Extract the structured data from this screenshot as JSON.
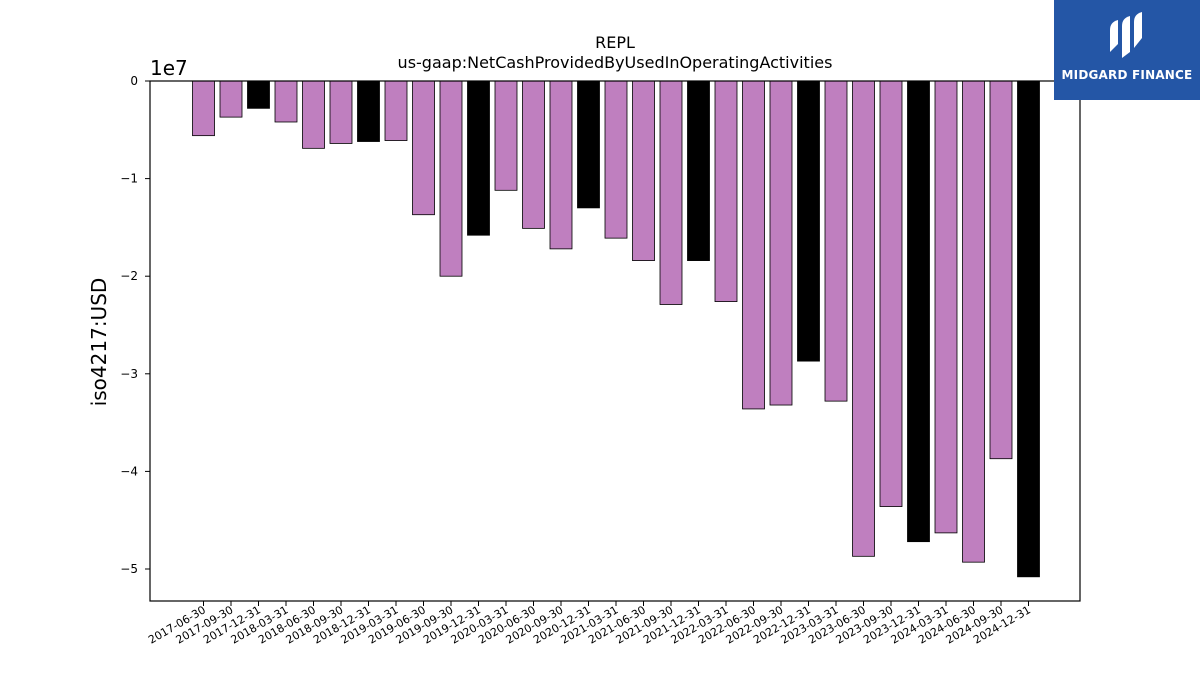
{
  "logo": {
    "text": "MIDGARD FINANCE"
  },
  "colors": {
    "quarterly": "#bf7fbf",
    "annual": "#000000",
    "logo_bg": "#2456a6"
  },
  "chart_data": {
    "type": "bar",
    "title": "REPL",
    "subtitle": "us-gaap:NetCashProvidedByUsedInOperatingActivities",
    "ylabel": "iso4217:USD",
    "xlabel": "",
    "scale_label": "1e7",
    "ylim": [
      -53000000,
      0
    ],
    "yticks": [
      0,
      -10000000,
      -20000000,
      -30000000,
      -40000000,
      -50000000
    ],
    "ytick_labels": [
      "0",
      "−1",
      "−2",
      "−3",
      "−4",
      "−5"
    ],
    "categories": [
      "2017-06-30",
      "2017-09-30",
      "2017-12-31",
      "2018-03-31",
      "2018-06-30",
      "2018-09-30",
      "2018-12-31",
      "2019-03-31",
      "2019-06-30",
      "2019-09-30",
      "2019-12-31",
      "2020-03-31",
      "2020-06-30",
      "2020-09-30",
      "2020-12-31",
      "2021-03-31",
      "2021-06-30",
      "2021-09-30",
      "2021-12-31",
      "2022-03-31",
      "2022-06-30",
      "2022-09-30",
      "2022-12-31",
      "2023-03-31",
      "2023-06-30",
      "2023-09-30",
      "2023-12-31",
      "2024-03-31",
      "2024-06-30",
      "2024-09-30",
      "2024-12-31"
    ],
    "values": [
      -5600000,
      -3700000,
      -2800000,
      -4200000,
      -6900000,
      -6400000,
      -6200000,
      -6100000,
      -13700000,
      -20000000,
      -15800000,
      -11200000,
      -15100000,
      -17200000,
      -13000000,
      -16100000,
      -18400000,
      -22900000,
      -18400000,
      -22600000,
      -33600000,
      -33200000,
      -28700000,
      -32800000,
      -48700000,
      -43600000,
      -47200000,
      -46300000,
      -49300000,
      -38700000,
      -50800000
    ],
    "annual": [
      false,
      false,
      true,
      false,
      false,
      false,
      true,
      false,
      false,
      false,
      true,
      false,
      false,
      false,
      true,
      false,
      false,
      false,
      true,
      false,
      false,
      false,
      true,
      false,
      false,
      false,
      true,
      false,
      false,
      false,
      true
    ],
    "grid": false,
    "legend": "none"
  }
}
